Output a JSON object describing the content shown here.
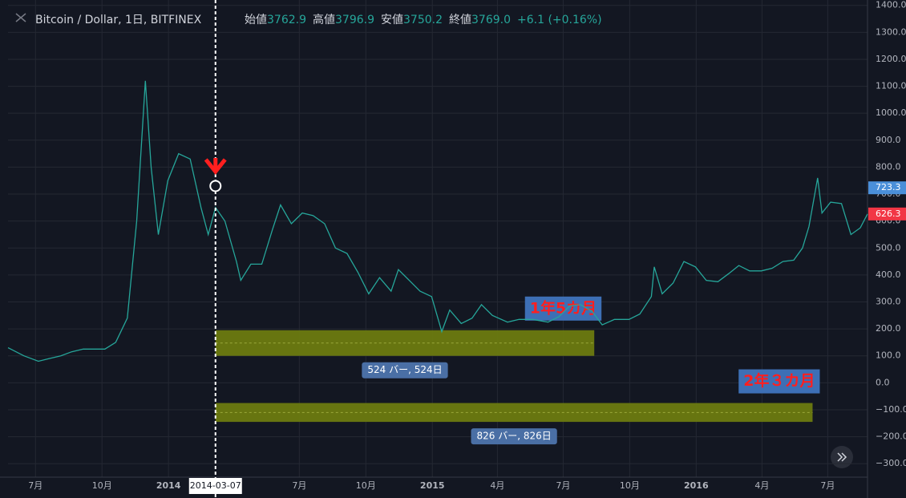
{
  "chart_data": {
    "type": "line",
    "title": "Bitcoin / Dollar, 1日, BITFINEX",
    "ohlc": [
      {
        "label": "始値",
        "value": "3762.9"
      },
      {
        "label": "高値",
        "value": "3796.9"
      },
      {
        "label": "安値",
        "value": "3750.2"
      },
      {
        "label": "終値",
        "value": "3769.0"
      }
    ],
    "change": "+6.1 (+0.16%)",
    "x": [
      "2013-05-24",
      "2013-06-15",
      "2013-07-05",
      "2013-07-20",
      "2013-08-05",
      "2013-08-20",
      "2013-09-05",
      "2013-09-20",
      "2013-10-05",
      "2013-10-20",
      "2013-11-05",
      "2013-11-18",
      "2013-11-30",
      "2013-12-08",
      "2013-12-18",
      "2013-12-31",
      "2014-01-15",
      "2014-01-31",
      "2014-02-15",
      "2014-02-25",
      "2014-03-07",
      "2014-03-20",
      "2014-04-05",
      "2014-04-11",
      "2014-04-25",
      "2014-05-10",
      "2014-05-25",
      "2014-06-05",
      "2014-06-20",
      "2014-07-05",
      "2014-07-20",
      "2014-08-05",
      "2014-08-20",
      "2014-09-05",
      "2014-09-20",
      "2014-10-05",
      "2014-10-20",
      "2014-11-05",
      "2014-11-15",
      "2014-11-30",
      "2014-12-15",
      "2014-12-31",
      "2015-01-14",
      "2015-01-25",
      "2015-02-10",
      "2015-02-25",
      "2015-03-10",
      "2015-03-25",
      "2015-04-15",
      "2015-05-01",
      "2015-05-20",
      "2015-06-10",
      "2015-06-25",
      "2015-07-10",
      "2015-07-25",
      "2015-08-10",
      "2015-08-24",
      "2015-09-10",
      "2015-09-30",
      "2015-10-15",
      "2015-10-31",
      "2015-11-04",
      "2015-11-15",
      "2015-11-30",
      "2015-12-15",
      "2015-12-31",
      "2016-01-15",
      "2016-01-31",
      "2016-02-15",
      "2016-02-29",
      "2016-03-15",
      "2016-03-31",
      "2016-04-15",
      "2016-04-30",
      "2016-05-15",
      "2016-05-27",
      "2016-06-05",
      "2016-06-17",
      "2016-06-23",
      "2016-07-05",
      "2016-07-20",
      "2016-08-02",
      "2016-08-15",
      "2016-08-25"
    ],
    "series": [
      {
        "name": "BTCUSD",
        "color": "#26a69a",
        "values": [
          130,
          100,
          80,
          90,
          100,
          115,
          125,
          125,
          125,
          150,
          240,
          600,
          1120,
          800,
          550,
          750,
          850,
          830,
          650,
          550,
          650,
          600,
          450,
          380,
          440,
          440,
          570,
          660,
          590,
          630,
          620,
          590,
          500,
          480,
          410,
          330,
          390,
          340,
          420,
          380,
          340,
          320,
          190,
          270,
          220,
          240,
          290,
          250,
          225,
          235,
          235,
          225,
          245,
          285,
          290,
          265,
          215,
          235,
          235,
          255,
          320,
          430,
          330,
          370,
          450,
          430,
          380,
          375,
          405,
          435,
          415,
          415,
          425,
          450,
          455,
          500,
          580,
          760,
          630,
          670,
          665,
          550,
          575,
          626.3
        ]
      }
    ],
    "xlim": [
      "2013-05-24",
      "2016-08-25"
    ],
    "xticks": [
      {
        "value": "2013-07-01",
        "label": "7月"
      },
      {
        "value": "2013-10-01",
        "label": "10月"
      },
      {
        "value": "2014-01-01",
        "label": "2014"
      },
      {
        "value": "2014-07-01",
        "label": "7月"
      },
      {
        "value": "2014-10-01",
        "label": "10月"
      },
      {
        "value": "2015-01-01",
        "label": "2015"
      },
      {
        "value": "2015-04-01",
        "label": "4月"
      },
      {
        "value": "2015-07-01",
        "label": "7月"
      },
      {
        "value": "2015-10-01",
        "label": "10月"
      },
      {
        "value": "2016-01-01",
        "label": "2016"
      },
      {
        "value": "2016-04-01",
        "label": "4月"
      },
      {
        "value": "2016-07-01",
        "label": "7月"
      }
    ],
    "ylim": [
      -350,
      1420
    ],
    "yticks": [
      {
        "value": 1400,
        "label": "1400.0"
      },
      {
        "value": 1300,
        "label": "1300.0"
      },
      {
        "value": 1200,
        "label": "1200.0"
      },
      {
        "value": 1100,
        "label": "1100.0"
      },
      {
        "value": 1000,
        "label": "1000.0"
      },
      {
        "value": 900,
        "label": "900.0"
      },
      {
        "value": 800,
        "label": "800.0"
      },
      {
        "value": 700,
        "label": "700.0"
      },
      {
        "value": 600,
        "label": "600.0"
      },
      {
        "value": 500,
        "label": "500.0"
      },
      {
        "value": 400,
        "label": "400.0"
      },
      {
        "value": 300,
        "label": "300.0"
      },
      {
        "value": 200,
        "label": "200.0"
      },
      {
        "value": 100,
        "label": "100.0"
      },
      {
        "value": 0,
        "label": "0.0"
      },
      {
        "value": -100,
        "label": "−100.0"
      },
      {
        "value": -200,
        "label": "−200.0"
      },
      {
        "value": -300,
        "label": "−300.0"
      }
    ],
    "grid": true,
    "crosshair_x": "2014-03-07",
    "marker": {
      "y": 730
    },
    "price_tags": [
      {
        "value": 723.3,
        "color": "#4a8fd9"
      },
      {
        "value": 626.3,
        "color": "#f23645"
      }
    ],
    "ranges": [
      {
        "x": [
          "2014-03-07",
          "2015-08-13"
        ],
        "y": [
          100,
          195
        ],
        "label": "524 バー, 524日",
        "note": "1年5カ月"
      },
      {
        "x": [
          "2014-03-07",
          "2016-06-10"
        ],
        "y": [
          -145,
          -75
        ],
        "label": "826 バー, 826日",
        "note": "2年３カ月"
      }
    ]
  }
}
